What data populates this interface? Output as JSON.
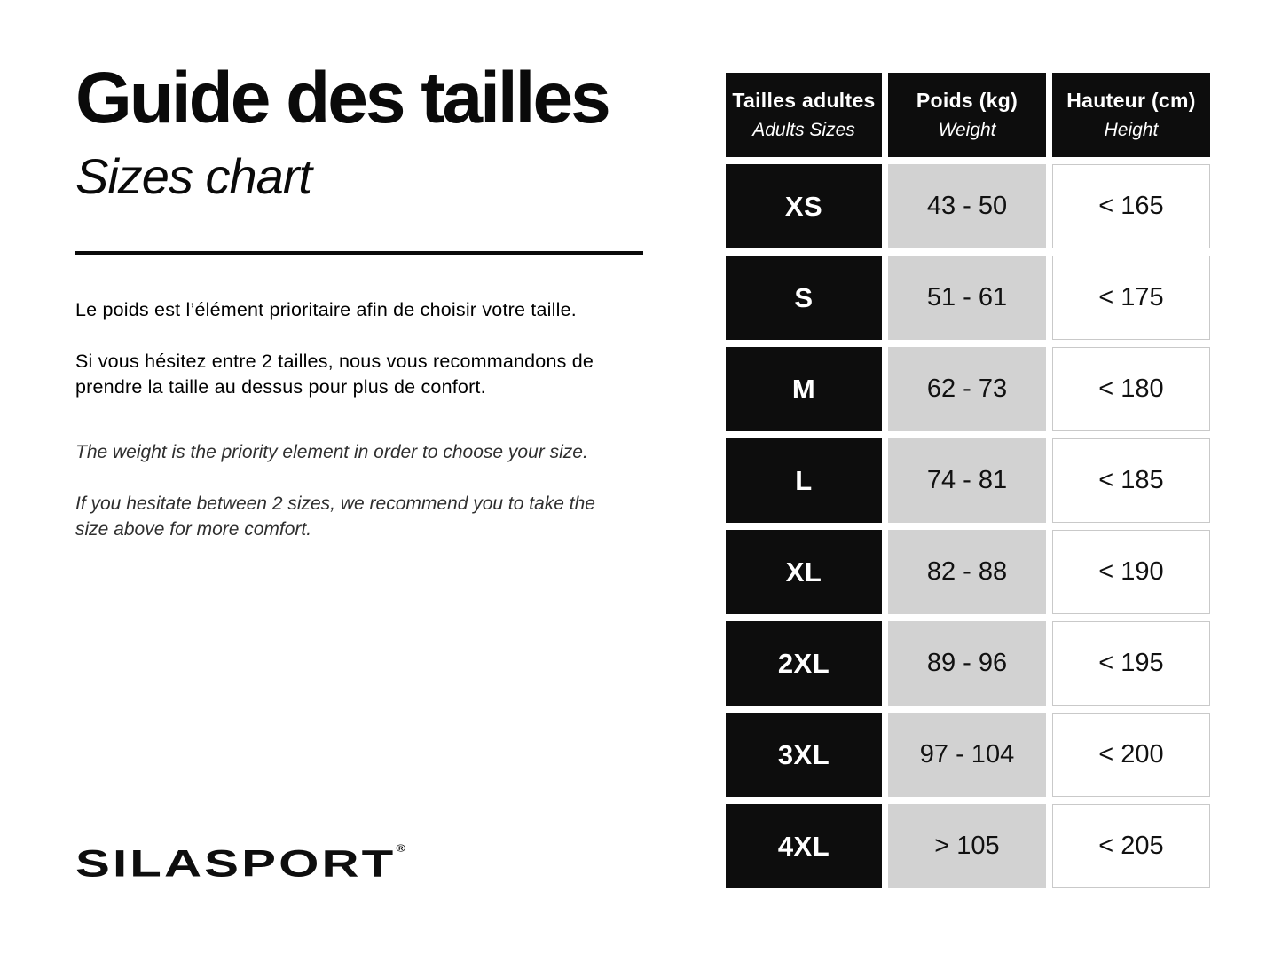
{
  "page": {
    "title_fr": "Guide des tailles",
    "title_en": "Sizes chart",
    "paragraph_fr_1": "Le poids est l’élément prioritaire afin de choisir votre taille.",
    "paragraph_fr_2": "Si vous hésitez entre 2 tailles, nous vous recommandons de prendre la taille au dessus pour plus de confort.",
    "paragraph_en_1": "The weight is the priority element in order to choose your size.",
    "paragraph_en_2": "If you hesitate between 2 sizes, we recommend you to take the size above for more comfort.",
    "brand": "SILASPORT",
    "brand_reg": "®"
  },
  "table": {
    "headers": [
      {
        "line1": "Tailles adultes",
        "line2": "Adults Sizes"
      },
      {
        "line1": "Poids (kg)",
        "line2": "Weight"
      },
      {
        "line1": "Hauteur (cm)",
        "line2": "Height"
      }
    ],
    "rows": [
      {
        "size": "XS",
        "weight": "43 - 50",
        "height": "< 165"
      },
      {
        "size": "S",
        "weight": "51 - 61",
        "height": "< 175"
      },
      {
        "size": "M",
        "weight": "62 - 73",
        "height": "< 180"
      },
      {
        "size": "L",
        "weight": "74 - 81",
        "height": "< 185"
      },
      {
        "size": "XL",
        "weight": "82 - 88",
        "height": "< 190"
      },
      {
        "size": "2XL",
        "weight": "89 - 96",
        "height": "< 195"
      },
      {
        "size": "3XL",
        "weight": "97 - 104",
        "height": "< 200"
      },
      {
        "size": "4XL",
        "weight": "> 105",
        "height": "< 205"
      }
    ]
  },
  "colors": {
    "header_bg": "#0d0d0d",
    "size_cell_bg": "#0d0d0d",
    "weight_cell_bg": "#d2d2d2",
    "height_cell_border": "#c9c9c9",
    "text": "#0a0a0a"
  }
}
